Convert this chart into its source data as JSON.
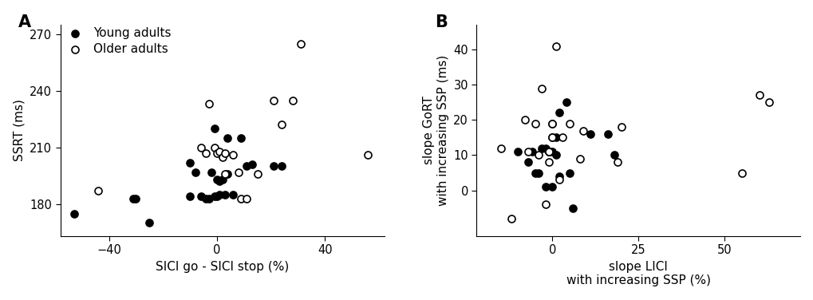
{
  "panel_A": {
    "title": "A",
    "xlabel": "SICI go - SICI stop (%)",
    "ylabel": "SSRT (ms)",
    "xlim": [
      -58,
      62
    ],
    "ylim": [
      163,
      275
    ],
    "xticks": [
      -40,
      0,
      40
    ],
    "yticks": [
      180,
      210,
      240,
      270
    ],
    "young_x": [
      -53,
      -31,
      -30,
      -25,
      -10,
      -10,
      -8,
      -6,
      -4,
      -3,
      -2,
      -1,
      -1,
      0,
      0,
      1,
      1,
      2,
      3,
      4,
      4,
      6,
      9,
      11,
      13,
      21,
      24
    ],
    "young_y": [
      175,
      183,
      183,
      170,
      202,
      184,
      197,
      184,
      183,
      183,
      197,
      220,
      184,
      193,
      184,
      185,
      192,
      193,
      185,
      196,
      215,
      185,
      215,
      200,
      201,
      200,
      200
    ],
    "older_x": [
      -44,
      -6,
      -4,
      -3,
      -1,
      0,
      1,
      2,
      3,
      3,
      6,
      8,
      9,
      11,
      15,
      21,
      24,
      28,
      31,
      56
    ],
    "older_y": [
      187,
      210,
      207,
      233,
      210,
      207,
      208,
      205,
      207,
      196,
      206,
      197,
      183,
      183,
      196,
      235,
      222,
      235,
      265,
      206
    ]
  },
  "panel_B": {
    "title": "B",
    "xlabel": "slope LICI\nwith increasing SSP (%)",
    "ylabel": "slope GoRT\nwith increasing SSP (ms)",
    "xlim": [
      -22,
      72
    ],
    "ylim": [
      -13,
      47
    ],
    "xticks": [
      0,
      25,
      50
    ],
    "yticks": [
      0,
      10,
      20,
      30,
      40
    ],
    "young_x": [
      -10,
      -7,
      -6,
      -5,
      -4,
      -3,
      -2,
      -2,
      -1,
      -1,
      0,
      0,
      0,
      0,
      1,
      1,
      2,
      2,
      4,
      5,
      6,
      11,
      16,
      18
    ],
    "young_y": [
      11,
      8,
      11,
      5,
      5,
      12,
      12,
      1,
      11,
      11,
      19,
      15,
      11,
      1,
      10,
      15,
      22,
      4,
      25,
      5,
      -5,
      16,
      16,
      10
    ],
    "older_x": [
      -15,
      -12,
      -8,
      -7,
      -5,
      -4,
      -3,
      -2,
      -1,
      -1,
      0,
      0,
      1,
      2,
      3,
      5,
      8,
      9,
      19,
      20,
      55,
      60,
      63
    ],
    "older_y": [
      12,
      -8,
      20,
      11,
      19,
      10,
      29,
      -4,
      11,
      8,
      19,
      15,
      41,
      3,
      15,
      19,
      9,
      17,
      8,
      18,
      5,
      27,
      25
    ]
  },
  "young_color": "black",
  "older_facecolor": "white",
  "marker_edge_color": "black",
  "marker_edge_width": 1.2,
  "marker_size": 42,
  "font_size": 11,
  "label_font_size": 11,
  "tick_font_size": 10.5
}
